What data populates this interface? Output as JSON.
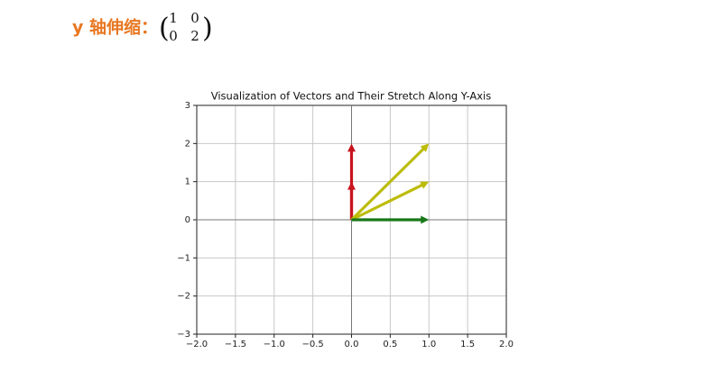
{
  "heading": {
    "title": "y 轴伸缩：",
    "matrix": [
      [
        1,
        0
      ],
      [
        0,
        2
      ]
    ]
  },
  "chart_data": {
    "type": "quiver",
    "title": "Visualization of Vectors and Their Stretch Along Y-Axis",
    "series": [
      {
        "color": "#c8141e",
        "x": [
          0,
          0
        ],
        "values": [
          2,
          1
        ]
      },
      {
        "color": "#bcbc0a",
        "x": [
          1,
          1
        ],
        "values": [
          2,
          1
        ]
      },
      {
        "color": "#187818",
        "x": [
          1
        ],
        "values": [
          0
        ]
      }
    ],
    "xlim": [
      -2,
      2
    ],
    "xticks": [
      {
        "value": -2,
        "label": "−2.0"
      },
      {
        "value": -1.5,
        "label": "−1.5"
      },
      {
        "value": -1,
        "label": "−1.0"
      },
      {
        "value": -0.5,
        "label": "−0.5"
      },
      {
        "value": 0,
        "label": "0.0"
      },
      {
        "value": 0.5,
        "label": "0.5"
      },
      {
        "value": 1,
        "label": "1.0"
      },
      {
        "value": 1.5,
        "label": "1.5"
      },
      {
        "value": 2,
        "label": "2.0"
      }
    ],
    "ylim": [
      -3,
      3
    ],
    "yticks": [
      {
        "value": -3,
        "label": "−3"
      },
      {
        "value": -2,
        "label": "−2"
      },
      {
        "value": -1,
        "label": "−1"
      },
      0,
      1,
      2,
      3
    ],
    "grid": true
  }
}
